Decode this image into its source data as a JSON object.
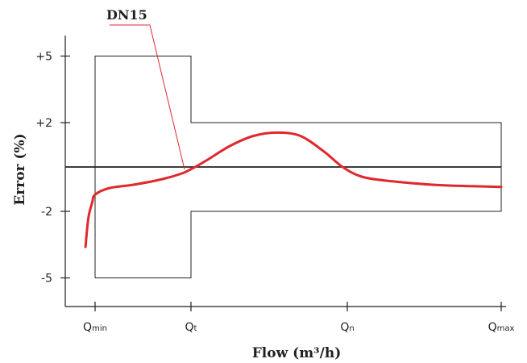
{
  "chart_data": {
    "type": "line",
    "title": "",
    "xlabel": "Flow (m³/h)",
    "ylabel": "Error (%)",
    "annotation": "DN15",
    "x_ticks": [
      {
        "base": "Q",
        "sub": "min",
        "x": 1
      },
      {
        "base": "Q",
        "sub": "t",
        "x": 2
      },
      {
        "base": "Q",
        "sub": "n",
        "x": 3
      },
      {
        "base": "Q",
        "sub": "max",
        "x": 4
      }
    ],
    "y_ticks": [
      {
        "label": "+5",
        "y": 5
      },
      {
        "label": "+2",
        "y": 2
      },
      {
        "label": "-2",
        "y": -2
      },
      {
        "label": "-5",
        "y": -5
      }
    ],
    "ylim": [
      -6.3,
      6.0
    ],
    "error_envelope": [
      {
        "x": 1,
        "y": -5
      },
      {
        "x": 1,
        "y": 5
      },
      {
        "x": 2,
        "y": 5
      },
      {
        "x": 2,
        "y": 2
      },
      {
        "x": 4,
        "y": 2
      },
      {
        "x": 4,
        "y": -2
      },
      {
        "x": 2,
        "y": -2
      },
      {
        "x": 2,
        "y": -5
      },
      {
        "x": 1,
        "y": -5
      }
    ],
    "zero_line": 0,
    "series": [
      {
        "name": "DN15",
        "color": "#e0282e",
        "points": [
          {
            "x": 0.9,
            "y": -3.6
          },
          {
            "x": 0.93,
            "y": -2.3
          },
          {
            "x": 0.97,
            "y": -1.6
          },
          {
            "x": 1.0,
            "y": -1.25
          },
          {
            "x": 1.15,
            "y": -0.95
          },
          {
            "x": 1.4,
            "y": -0.8
          },
          {
            "x": 1.7,
            "y": -0.55
          },
          {
            "x": 1.9,
            "y": -0.3
          },
          {
            "x": 2.0,
            "y": -0.1
          },
          {
            "x": 2.1,
            "y": 0.3
          },
          {
            "x": 2.25,
            "y": 0.95
          },
          {
            "x": 2.4,
            "y": 1.4
          },
          {
            "x": 2.55,
            "y": 1.55
          },
          {
            "x": 2.7,
            "y": 1.4
          },
          {
            "x": 2.85,
            "y": 0.7
          },
          {
            "x": 2.97,
            "y": 0.0
          },
          {
            "x": 3.1,
            "y": -0.45
          },
          {
            "x": 3.3,
            "y": -0.65
          },
          {
            "x": 3.6,
            "y": -0.82
          },
          {
            "x": 3.9,
            "y": -0.88
          },
          {
            "x": 4.0,
            "y": -0.9
          }
        ]
      }
    ],
    "grid": false
  }
}
